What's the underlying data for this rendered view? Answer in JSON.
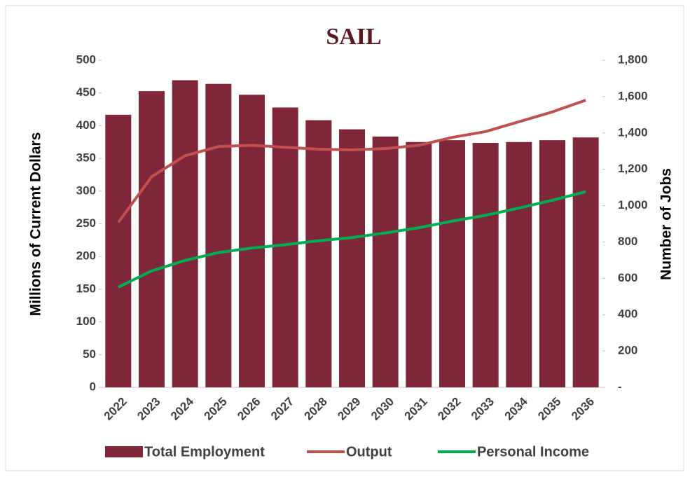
{
  "chart_data": {
    "type": "bar-line",
    "title": "SAIL",
    "ylabel": "Millions of Current Dollars",
    "y2label": "Number of Jobs",
    "categories": [
      "2022",
      "2023",
      "2024",
      "2025",
      "2026",
      "2027",
      "2028",
      "2029",
      "2030",
      "2031",
      "2032",
      "2033",
      "2034",
      "2035",
      "2036"
    ],
    "series": [
      {
        "name": "Total Employment",
        "type": "bar",
        "axis": "y2",
        "color": "#7f2639",
        "values": [
          1500,
          1630,
          1690,
          1670,
          1610,
          1540,
          1470,
          1420,
          1380,
          1350,
          1360,
          1345,
          1350,
          1360,
          1375
        ]
      },
      {
        "name": "Output",
        "type": "line",
        "color": "#c0504d",
        "values": [
          252,
          322,
          354,
          368,
          370,
          367,
          364,
          363,
          365,
          370,
          382,
          391,
          406,
          421,
          439
        ]
      },
      {
        "name": "Personal Income",
        "type": "line",
        "color": "#00b050",
        "values": [
          153,
          178,
          194,
          206,
          213,
          218,
          224,
          229,
          236,
          244,
          254,
          263,
          274,
          286,
          299
        ]
      }
    ],
    "ylim": [
      0,
      500
    ],
    "yticks": [
      0,
      50,
      100,
      150,
      200,
      250,
      300,
      350,
      400,
      450,
      500
    ],
    "y2lim": [
      0,
      1800
    ],
    "y2ticks": [
      {
        "value": 0,
        "label": "-"
      },
      200,
      400,
      600,
      800,
      {
        "value": 1000,
        "label": "1,000"
      },
      {
        "value": 1200,
        "label": "1,200"
      },
      {
        "value": 1400,
        "label": "1,400"
      },
      {
        "value": 1600,
        "label": "1,600"
      },
      {
        "value": 1800,
        "label": "1,800"
      }
    ],
    "legend": "bottom"
  }
}
